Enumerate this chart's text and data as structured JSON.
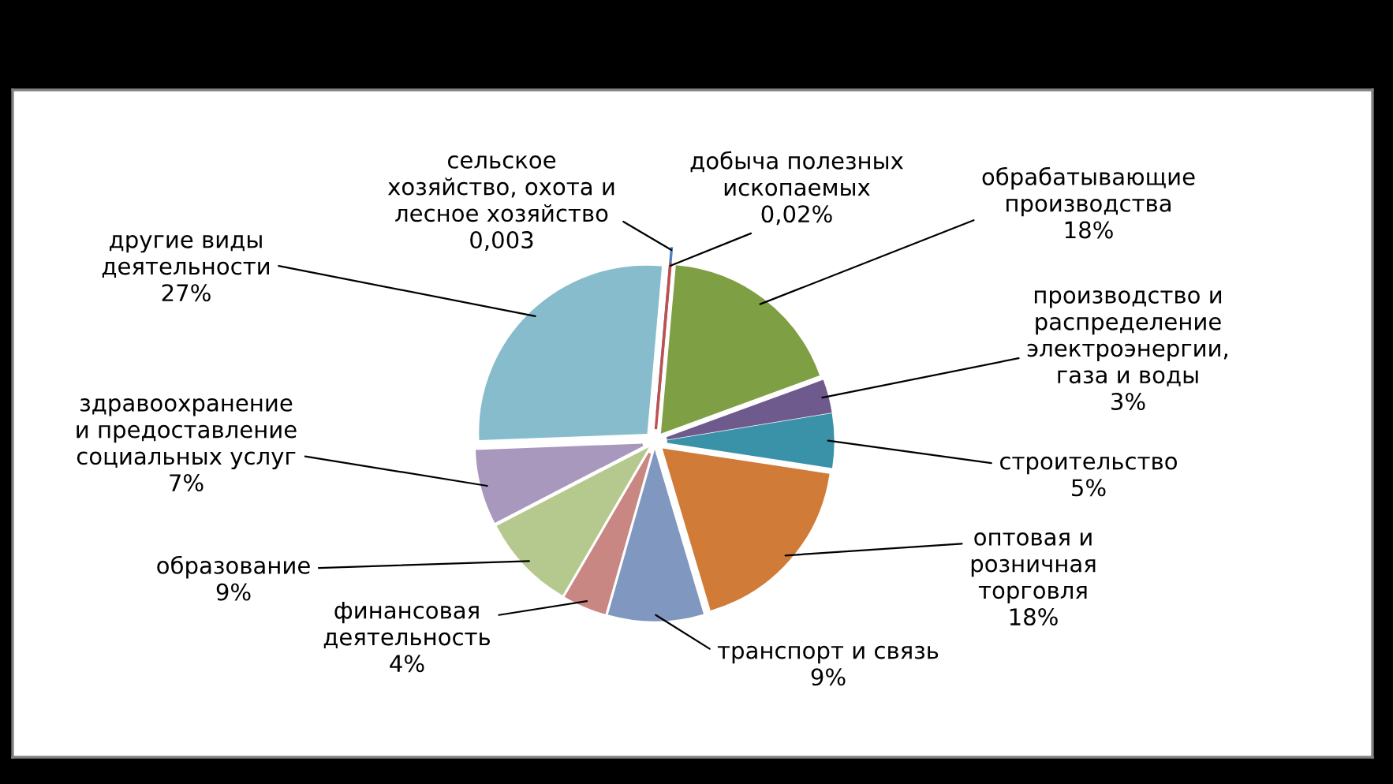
{
  "chart_data": {
    "type": "pie",
    "categories": [
      "сельское\nхозяйство, охота и\nлесное хозяйство",
      "добыча полезных\nископаемых",
      "обрабатывающие\nпроизводства",
      "производство и\nраспределение\nэлектроэнергии,\nгаза и воды",
      "строительство",
      "оптовая и\nрозничная\nторговля",
      "транспорт и связь",
      "финансовая\nдеятельность",
      "образование",
      "здравоохранение\nи предоставление\nсоциальных услуг",
      "другие виды\nдеятельности"
    ],
    "values": [
      0.003,
      0.02,
      18,
      3,
      5,
      18,
      9,
      4,
      9,
      7,
      27
    ],
    "value_labels": [
      "0,003",
      "0,02%",
      "18%",
      "3%",
      "5%",
      "18%",
      "9%",
      "4%",
      "9%",
      "7%",
      "27%"
    ],
    "colors": [
      "#4f81bd",
      "#c0504d",
      "#7f9f45",
      "#6e5a8c",
      "#3a92a8",
      "#d07b38",
      "#8098c0",
      "#c98783",
      "#b5c98e",
      "#a898bd",
      "#86bccb"
    ]
  }
}
